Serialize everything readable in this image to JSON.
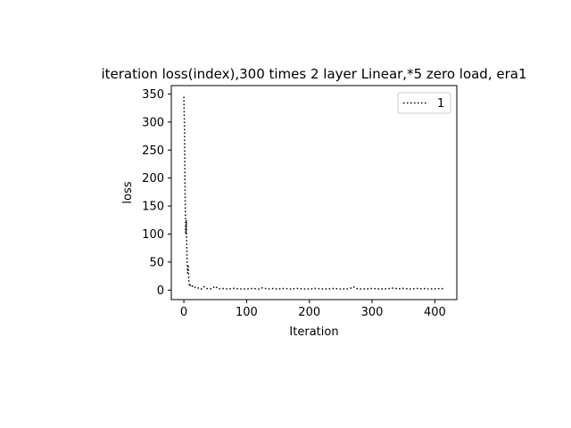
{
  "chart_data": {
    "type": "line",
    "title": "iteration loss(index),300 times 2 layer Linear,*5 zero load, era1",
    "xlabel": "Iteration",
    "ylabel": "loss",
    "xlim": [
      -20,
      435
    ],
    "ylim": [
      -17,
      365
    ],
    "xticks": [
      0,
      100,
      200,
      300,
      400
    ],
    "yticks": [
      0,
      50,
      100,
      150,
      200,
      250,
      300,
      350
    ],
    "xtick_labels": [
      "0",
      "100",
      "200",
      "300",
      "400"
    ],
    "ytick_labels": [
      "0",
      "50",
      "100",
      "150",
      "200",
      "250",
      "300",
      "350"
    ],
    "grid": false,
    "legend": {
      "position": "top-right",
      "entries": [
        "1"
      ]
    },
    "series": [
      {
        "name": "1",
        "color": "#000000",
        "line_style": "dotted",
        "x": [
          0,
          1,
          2,
          3,
          4,
          5,
          6,
          7,
          8,
          9,
          10,
          11,
          12,
          14,
          16,
          18,
          20,
          24,
          28,
          32,
          36,
          40,
          45,
          50,
          55,
          60,
          70,
          80,
          90,
          100,
          110,
          120,
          125,
          130,
          135,
          140,
          150,
          160,
          170,
          180,
          190,
          200,
          210,
          220,
          230,
          240,
          250,
          260,
          265,
          270,
          275,
          280,
          290,
          300,
          310,
          320,
          330,
          335,
          340,
          350,
          360,
          370,
          380,
          385,
          390,
          400,
          410,
          414
        ],
        "y": [
          345,
          290,
          165,
          100,
          125,
          60,
          30,
          45,
          15,
          8,
          10,
          6,
          5,
          7,
          4,
          5,
          3,
          4,
          2,
          6,
          3,
          2,
          3,
          7,
          2,
          3,
          2,
          3,
          2,
          2,
          3,
          2,
          4,
          3,
          2,
          3,
          2,
          3,
          2,
          3,
          2,
          2,
          3,
          2,
          2,
          3,
          2,
          2,
          3,
          6,
          3,
          2,
          2,
          3,
          2,
          2,
          3,
          4,
          2,
          3,
          2,
          3,
          2,
          3,
          2,
          2,
          3,
          2
        ]
      }
    ]
  }
}
